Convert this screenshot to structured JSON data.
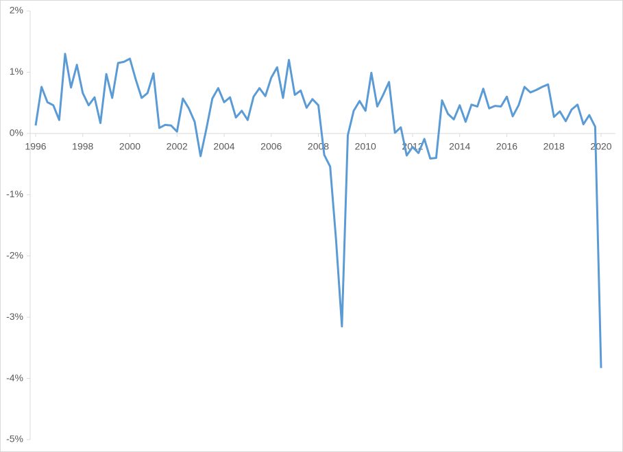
{
  "chart_data": {
    "type": "line",
    "x": [
      1996,
      1996.25,
      1996.5,
      1996.75,
      1997,
      1997.25,
      1997.5,
      1997.75,
      1998,
      1998.25,
      1998.5,
      1998.75,
      1999,
      1999.25,
      1999.5,
      1999.75,
      2000,
      2000.25,
      2000.5,
      2000.75,
      2001,
      2001.25,
      2001.5,
      2001.75,
      2002,
      2002.25,
      2002.5,
      2002.75,
      2003,
      2003.25,
      2003.5,
      2003.75,
      2004,
      2004.25,
      2004.5,
      2004.75,
      2005,
      2005.25,
      2005.5,
      2005.75,
      2006,
      2006.25,
      2006.5,
      2006.75,
      2007,
      2007.25,
      2007.5,
      2007.75,
      2008,
      2008.25,
      2008.5,
      2008.75,
      2009,
      2009.25,
      2009.5,
      2009.75,
      2010,
      2010.25,
      2010.5,
      2010.75,
      2011,
      2011.25,
      2011.5,
      2011.75,
      2012,
      2012.25,
      2012.5,
      2012.75,
      2013,
      2013.25,
      2013.5,
      2013.75,
      2014,
      2014.25,
      2014.5,
      2014.75,
      2015,
      2015.25,
      2015.5,
      2015.75,
      2016,
      2016.25,
      2016.5,
      2016.75,
      2017,
      2017.25,
      2017.5,
      2017.75,
      2018,
      2018.25,
      2018.5,
      2018.75,
      2019,
      2019.25,
      2019.5,
      2019.75,
      2020
    ],
    "series": [
      {
        "color": "#5b9bd5",
        "values": [
          0.13,
          0.76,
          0.51,
          0.46,
          0.22,
          1.3,
          0.75,
          1.12,
          0.66,
          0.46,
          0.59,
          0.17,
          0.97,
          0.58,
          1.15,
          1.17,
          1.22,
          0.88,
          0.58,
          0.66,
          0.98,
          0.09,
          0.14,
          0.13,
          0.03,
          0.57,
          0.41,
          0.19,
          -0.37,
          0.08,
          0.57,
          0.74,
          0.51,
          0.59,
          0.26,
          0.37,
          0.22,
          0.6,
          0.74,
          0.61,
          0.91,
          1.08,
          0.58,
          1.2,
          0.63,
          0.7,
          0.42,
          0.56,
          0.46,
          -0.35,
          -0.54,
          -1.73,
          -3.15,
          -0.03,
          0.37,
          0.53,
          0.37,
          0.99,
          0.44,
          0.63,
          0.84,
          0.01,
          0.1,
          -0.36,
          -0.22,
          -0.32,
          -0.09,
          -0.41,
          -0.4,
          0.54,
          0.32,
          0.23,
          0.46,
          0.19,
          0.47,
          0.44,
          0.73,
          0.41,
          0.45,
          0.44,
          0.6,
          0.28,
          0.46,
          0.76,
          0.67,
          0.71,
          0.76,
          0.8,
          0.27,
          0.36,
          0.2,
          0.39,
          0.47,
          0.15,
          0.3,
          0.11,
          -3.83
        ]
      }
    ],
    "xlim": [
      1996,
      2020
    ],
    "xticks": [
      1996,
      1998,
      2000,
      2002,
      2004,
      2006,
      2008,
      2010,
      2012,
      2014,
      2016,
      2018,
      2020
    ],
    "ylim": [
      -5,
      2
    ],
    "yticks": [
      {
        "value": 2,
        "label": "2%"
      },
      {
        "value": 1,
        "label": "1%"
      },
      {
        "value": 0,
        "label": "0%"
      },
      {
        "value": -1,
        "label": "-1%"
      },
      {
        "value": -2,
        "label": "-2%"
      },
      {
        "value": -3,
        "label": "-3%"
      },
      {
        "value": -4,
        "label": "-4%"
      },
      {
        "value": -5,
        "label": "-5%"
      }
    ]
  }
}
